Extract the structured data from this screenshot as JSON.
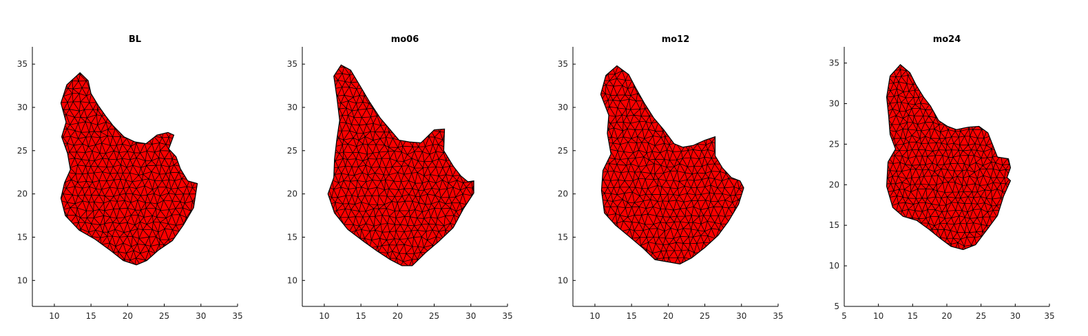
{
  "figure": {
    "colors": {
      "mesh_fill": "#ff0000",
      "mesh_edge": "#000000",
      "axis": "#000000"
    }
  },
  "chart_data": [
    {
      "type": "mesh",
      "title": "BL",
      "xlabel": "",
      "ylabel": "",
      "xlim": [
        7,
        35
      ],
      "ylim": [
        7,
        37
      ],
      "xticks": [
        10,
        15,
        20,
        25,
        30,
        35
      ],
      "yticks": [
        10,
        15,
        20,
        25,
        30,
        35
      ],
      "grid": false,
      "outline": [
        [
          13.5,
          34
        ],
        [
          14.6,
          33.1
        ],
        [
          15,
          31.6
        ],
        [
          16,
          30.2
        ],
        [
          17,
          29
        ],
        [
          18,
          27.9
        ],
        [
          19.5,
          26.6
        ],
        [
          21,
          26
        ],
        [
          22.5,
          25.8
        ],
        [
          24,
          26.8
        ],
        [
          25.5,
          27.1
        ],
        [
          26.3,
          26.8
        ],
        [
          25.6,
          25.2
        ],
        [
          26.6,
          24.3
        ],
        [
          27.2,
          22.9
        ],
        [
          28.2,
          21.5
        ],
        [
          29.5,
          21.2
        ],
        [
          29,
          18.4
        ],
        [
          27.6,
          16.4
        ],
        [
          26.1,
          14.6
        ],
        [
          24.2,
          13.5
        ],
        [
          22.6,
          12.3
        ],
        [
          21.2,
          11.8
        ],
        [
          19.4,
          12.3
        ],
        [
          17.6,
          13.5
        ],
        [
          15.5,
          14.8
        ],
        [
          13.4,
          15.8
        ],
        [
          11.5,
          17.5
        ],
        [
          10.9,
          19.5
        ],
        [
          11.4,
          21.3
        ],
        [
          12.2,
          22.8
        ],
        [
          11.8,
          24.7
        ],
        [
          11,
          26.6
        ],
        [
          11.6,
          28.3
        ],
        [
          10.9,
          30.5
        ],
        [
          11.7,
          32.6
        ]
      ]
    },
    {
      "type": "mesh",
      "title": "mo06",
      "xlabel": "",
      "ylabel": "",
      "xlim": [
        7,
        35
      ],
      "ylim": [
        7,
        37
      ],
      "xticks": [
        10,
        15,
        20,
        25,
        30,
        35
      ],
      "yticks": [
        10,
        15,
        20,
        25,
        30,
        35
      ],
      "grid": false,
      "outline": [
        [
          12.3,
          34.9
        ],
        [
          13.6,
          34.3
        ],
        [
          14.8,
          32.6
        ],
        [
          16.2,
          30.6
        ],
        [
          17.6,
          28.8
        ],
        [
          19,
          27.4
        ],
        [
          20.2,
          26.2
        ],
        [
          21.6,
          26
        ],
        [
          23.2,
          25.9
        ],
        [
          25,
          27.4
        ],
        [
          26.4,
          27.5
        ],
        [
          26.3,
          25
        ],
        [
          27.6,
          23.2
        ],
        [
          28.6,
          22.1
        ],
        [
          29.6,
          21.4
        ],
        [
          30.4,
          21.5
        ],
        [
          30.4,
          20.1
        ],
        [
          29,
          18.3
        ],
        [
          27.6,
          16.1
        ],
        [
          25.6,
          14.5
        ],
        [
          23.8,
          13.2
        ],
        [
          22,
          11.7
        ],
        [
          20.6,
          11.7
        ],
        [
          19,
          12.4
        ],
        [
          17.2,
          13.4
        ],
        [
          15.4,
          14.5
        ],
        [
          13.2,
          15.9
        ],
        [
          11.4,
          17.8
        ],
        [
          10.5,
          20
        ],
        [
          11.3,
          21.9
        ],
        [
          11.4,
          24
        ],
        [
          11.7,
          26.2
        ],
        [
          12.1,
          28.5
        ],
        [
          11.7,
          31.3
        ],
        [
          11.3,
          33.6
        ]
      ]
    },
    {
      "type": "mesh",
      "title": "mo12",
      "xlabel": "",
      "ylabel": "",
      "xlim": [
        7,
        35
      ],
      "ylim": [
        7,
        37
      ],
      "xticks": [
        10,
        15,
        20,
        25,
        30,
        35
      ],
      "yticks": [
        10,
        15,
        20,
        25,
        30,
        35
      ],
      "grid": false,
      "outline": [
        [
          13,
          34.8
        ],
        [
          14.6,
          33.8
        ],
        [
          15.6,
          32.2
        ],
        [
          16.8,
          30.4
        ],
        [
          18,
          28.8
        ],
        [
          19.4,
          27.4
        ],
        [
          20.8,
          25.8
        ],
        [
          22,
          25.4
        ],
        [
          23.4,
          25.6
        ],
        [
          25,
          26.2
        ],
        [
          26.4,
          26.6
        ],
        [
          26.4,
          24.4
        ],
        [
          27.4,
          23
        ],
        [
          28.6,
          21.9
        ],
        [
          29.8,
          21.5
        ],
        [
          30.3,
          20.7
        ],
        [
          29.6,
          18.8
        ],
        [
          28.2,
          16.8
        ],
        [
          26.8,
          15.2
        ],
        [
          25,
          13.8
        ],
        [
          23.2,
          12.6
        ],
        [
          21.6,
          11.9
        ],
        [
          19.6,
          12.2
        ],
        [
          18.2,
          12.4
        ],
        [
          16.6,
          13.7
        ],
        [
          14.8,
          15
        ],
        [
          12.8,
          16.4
        ],
        [
          11.3,
          17.8
        ],
        [
          10.9,
          20.4
        ],
        [
          11.1,
          22.7
        ],
        [
          12.2,
          24.6
        ],
        [
          11.7,
          27
        ],
        [
          11.9,
          29.1
        ],
        [
          10.8,
          31.5
        ],
        [
          11.5,
          33.7
        ]
      ]
    },
    {
      "type": "mesh",
      "title": "mo24",
      "xlabel": "",
      "ylabel": "",
      "xlim": [
        5,
        35
      ],
      "ylim": [
        5,
        37
      ],
      "xticks": [
        5,
        10,
        15,
        20,
        25,
        30,
        35
      ],
      "yticks": [
        5,
        10,
        15,
        20,
        25,
        30,
        35
      ],
      "grid": false,
      "outline": [
        [
          13.2,
          34.8
        ],
        [
          14.6,
          33.8
        ],
        [
          15.5,
          32.3
        ],
        [
          16.6,
          30.8
        ],
        [
          17.6,
          29.7
        ],
        [
          18.8,
          27.9
        ],
        [
          20.1,
          27.2
        ],
        [
          21.4,
          26.8
        ],
        [
          23.2,
          27.1
        ],
        [
          24.7,
          27.2
        ],
        [
          26,
          26.4
        ],
        [
          26.7,
          24.9
        ],
        [
          27.4,
          23.4
        ],
        [
          29,
          23.2
        ],
        [
          29.3,
          22.1
        ],
        [
          28.8,
          20.9
        ],
        [
          29.3,
          20.5
        ],
        [
          28.3,
          18.6
        ],
        [
          27.4,
          16.2
        ],
        [
          26,
          14.6
        ],
        [
          24.2,
          12.6
        ],
        [
          22.4,
          12
        ],
        [
          20.6,
          12.4
        ],
        [
          19,
          13.4
        ],
        [
          17.4,
          14.5
        ],
        [
          15.6,
          15.6
        ],
        [
          13.6,
          16.1
        ],
        [
          12.1,
          17.2
        ],
        [
          11.2,
          19.8
        ],
        [
          11.4,
          22.8
        ],
        [
          12.5,
          24.4
        ],
        [
          11.7,
          26.2
        ],
        [
          11.5,
          28.4
        ],
        [
          11.2,
          30.8
        ],
        [
          11.7,
          33.4
        ]
      ]
    }
  ]
}
